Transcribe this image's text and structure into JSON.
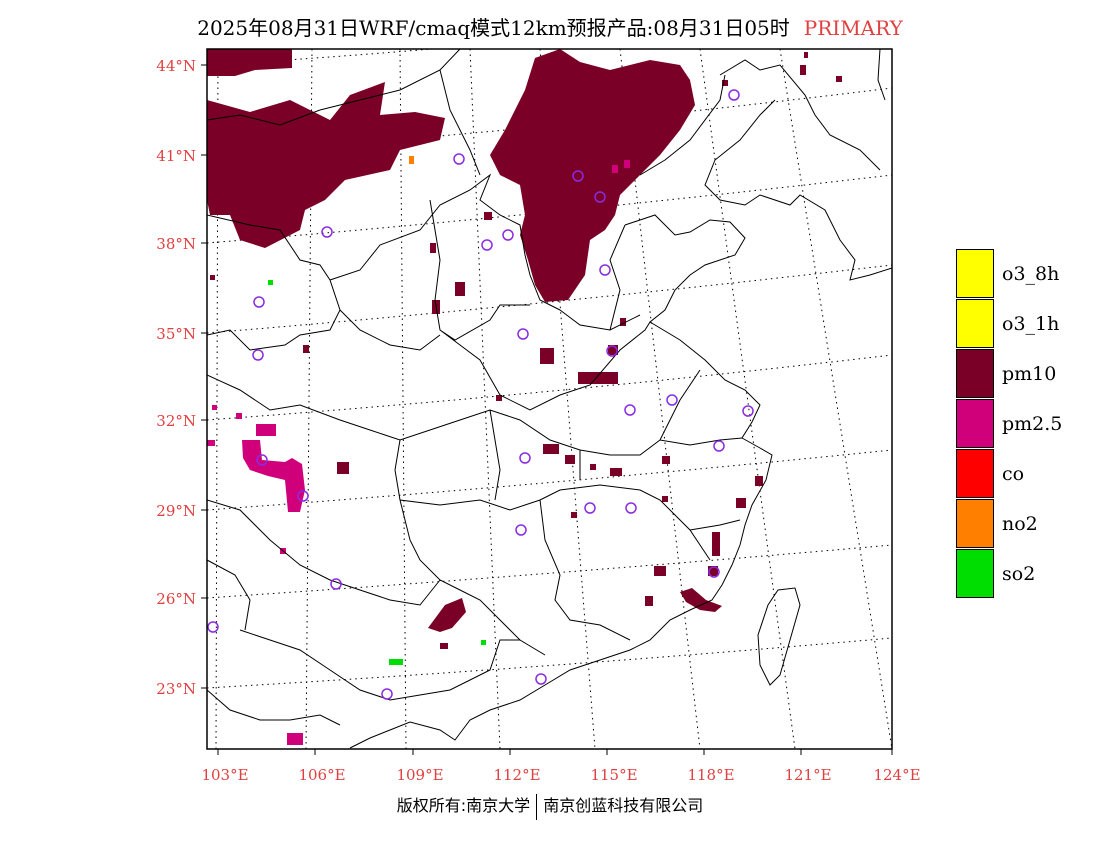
{
  "title": {
    "main": "2025年08月31日WRF/cmaq模式12km预报产品:08月31日05时",
    "tag": "PRIMARY"
  },
  "axes": {
    "lat_labels": [
      "44°N",
      "41°N",
      "38°N",
      "35°N",
      "32°N",
      "29°N",
      "26°N",
      "23°N"
    ],
    "lon_labels": [
      "103°E",
      "106°E",
      "109°E",
      "112°E",
      "115°E",
      "118°E",
      "121°E",
      "124°E"
    ]
  },
  "legend": [
    {
      "label": "o3_8h",
      "color": "#ffff00"
    },
    {
      "label": "o3_1h",
      "color": "#ffff00"
    },
    {
      "label": "pm10",
      "color": "#7a0028"
    },
    {
      "label": "pm2.5",
      "color": "#d0007a"
    },
    {
      "label": "co",
      "color": "#ff0000"
    },
    {
      "label": "no2",
      "color": "#ff7f00"
    },
    {
      "label": "so2",
      "color": "#00dd00"
    }
  ],
  "colors": {
    "pm10": "#7a0028",
    "pm25": "#d0007a",
    "so2": "#00dd00",
    "no2": "#ff7f00",
    "station_ring": "#8a2be2",
    "axis_text": "#e04040"
  },
  "footer": {
    "left": "版权所有:南京大学",
    "right": "南京创蓝科技有限公司"
  }
}
